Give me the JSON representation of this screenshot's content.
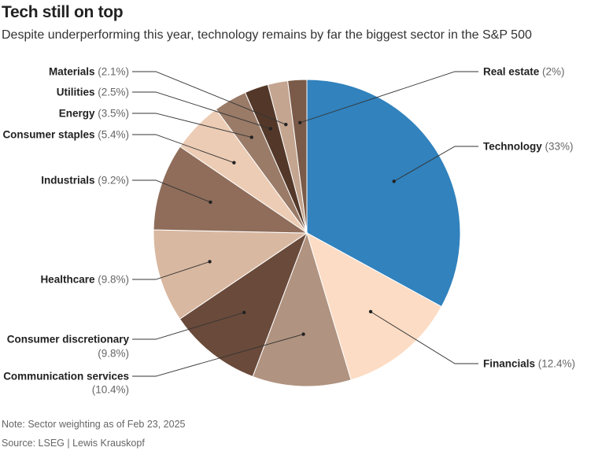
{
  "title": "Tech still on top",
  "subtitle": "Despite underperforming this year, technology remains by far the biggest sector in the S&P 500",
  "note": "Note: Sector weighting as of Feb 23, 2025",
  "source": "Source: LSEG | Lewis Krauskopf",
  "chart_data": {
    "type": "pie",
    "title": "Tech still on top",
    "unit": "%",
    "start_angle_deg": 0,
    "direction": "clockwise",
    "slices": [
      {
        "name": "Technology",
        "value": 33,
        "label_value": "(33%)",
        "color": "#3182bd"
      },
      {
        "name": "Financials",
        "value": 12.4,
        "label_value": "(12.4%)",
        "color": "#fcdcc4"
      },
      {
        "name": "Communication services",
        "value": 10.4,
        "label_value": "(10.4%)",
        "color": "#b09380"
      },
      {
        "name": "Consumer discretionary",
        "value": 9.8,
        "label_value": "(9.8%)",
        "color": "#6a4a3a"
      },
      {
        "name": "Healthcare",
        "value": 9.8,
        "label_value": "(9.8%)",
        "color": "#d9b8a1"
      },
      {
        "name": "Industrials",
        "value": 9.2,
        "label_value": "(9.2%)",
        "color": "#8f6d5a"
      },
      {
        "name": "Consumer staples",
        "value": 5.4,
        "label_value": "(5.4%)",
        "color": "#ecccb4"
      },
      {
        "name": "Energy",
        "value": 3.5,
        "label_value": "(3.5%)",
        "color": "#9a7b68"
      },
      {
        "name": "Utilities",
        "value": 2.5,
        "label_value": "(2.5%)",
        "color": "#533829"
      },
      {
        "name": "Materials",
        "value": 2.1,
        "label_value": "(2.1%)",
        "color": "#c4a590"
      },
      {
        "name": "Real estate",
        "value": 2,
        "label_value": "(2%)",
        "color": "#7a5a48"
      }
    ]
  }
}
